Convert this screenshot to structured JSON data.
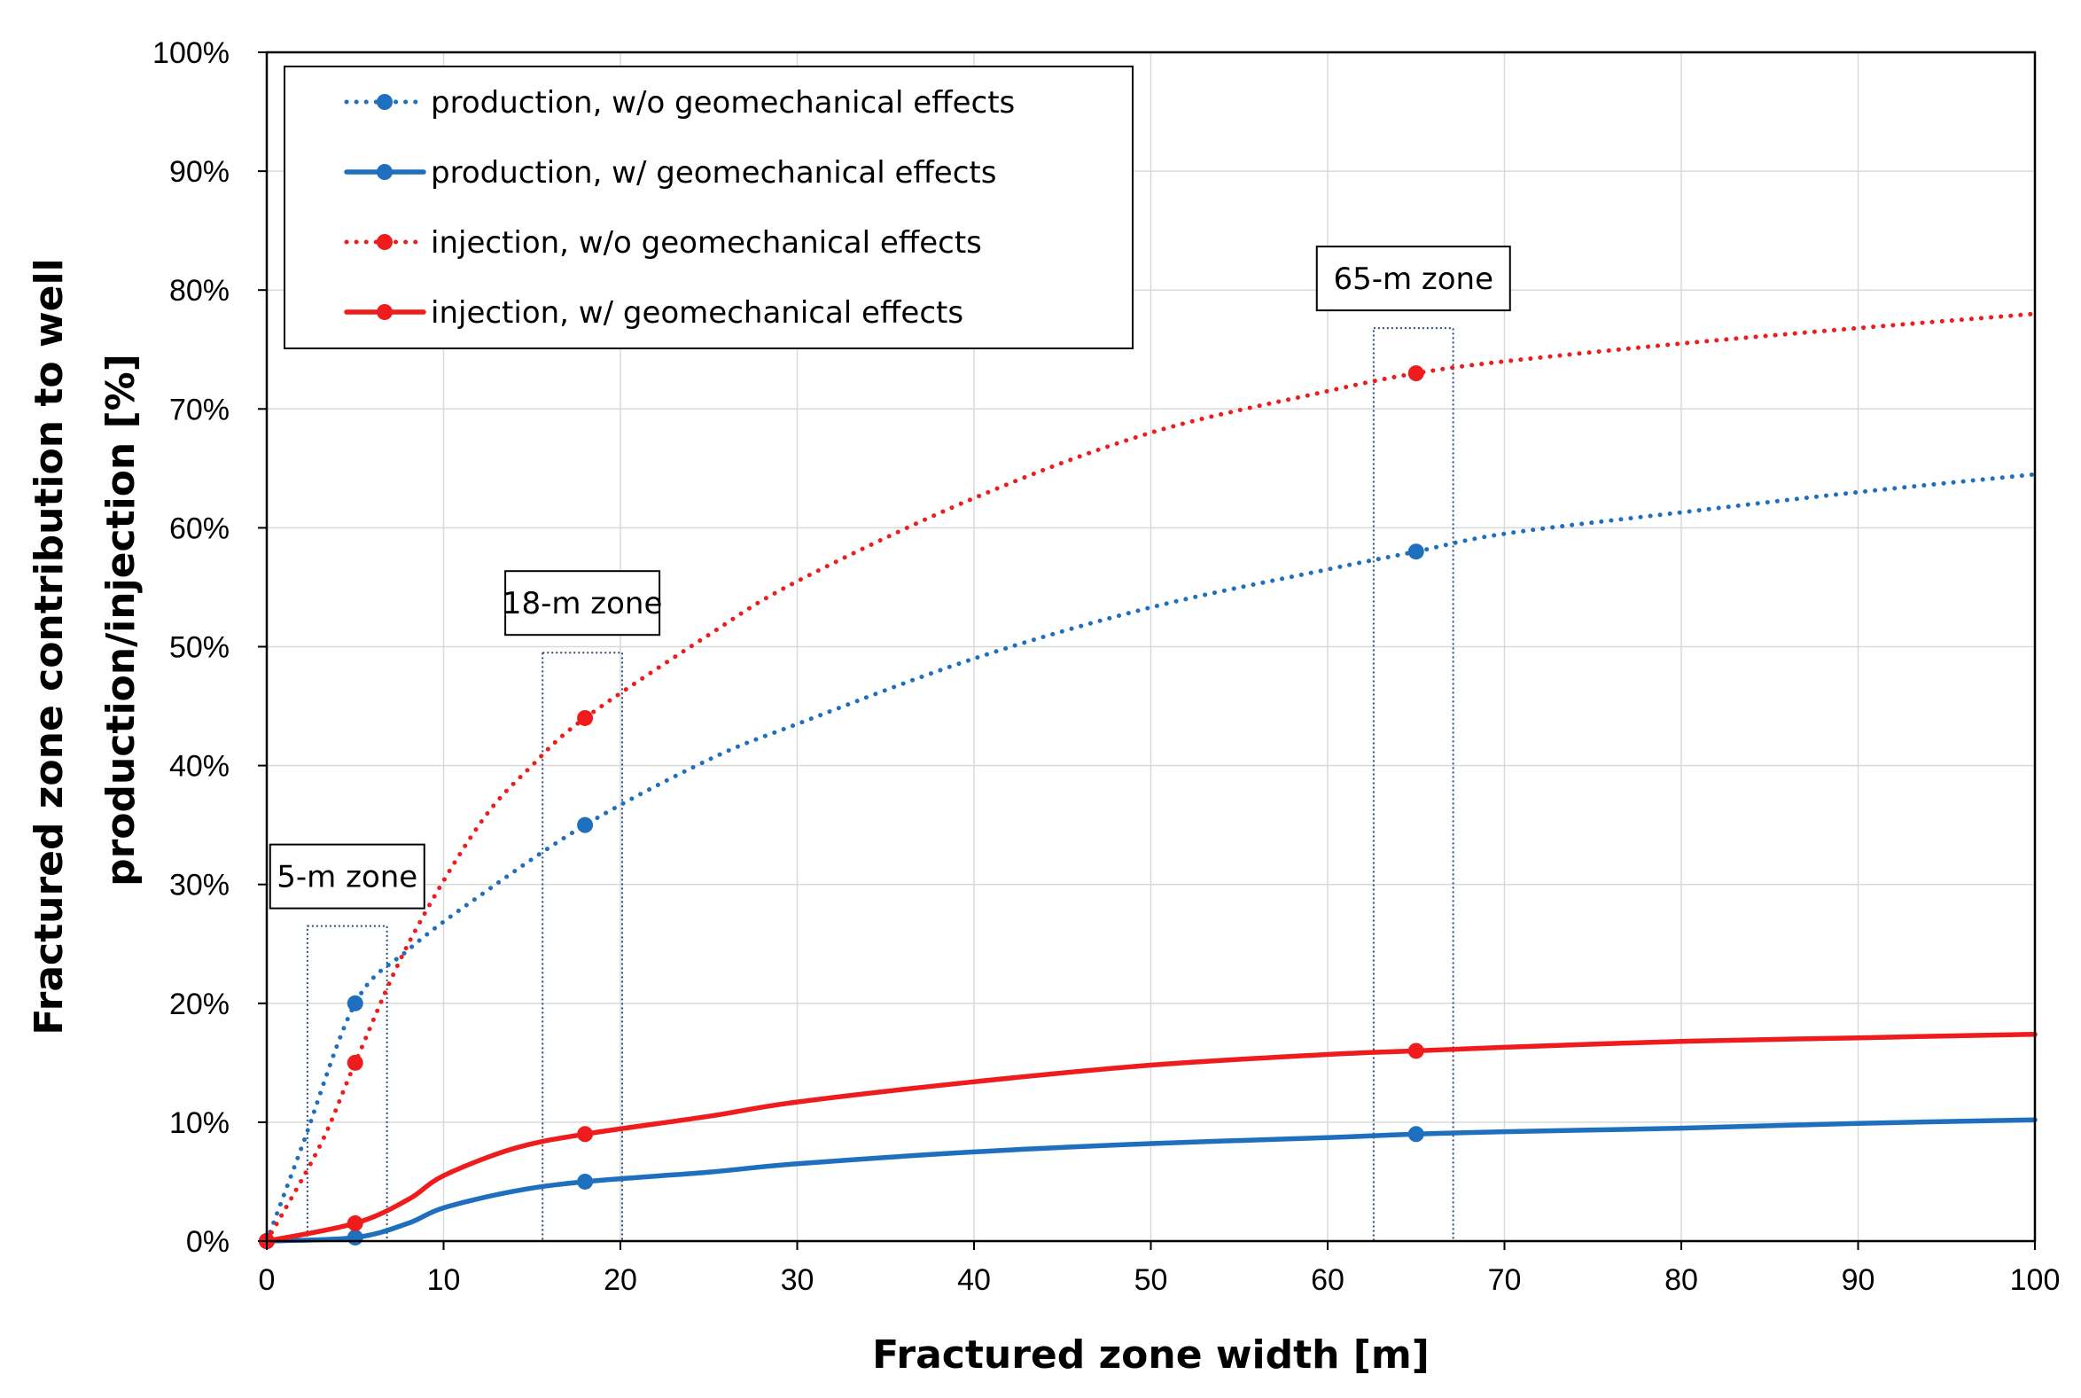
{
  "chart_data": {
    "type": "line",
    "xlabel": "Fractured zone width [m]",
    "ylabel_lines": [
      "Fractured zone contribution to well",
      "production/injection [%]"
    ],
    "xlim": [
      0,
      100
    ],
    "ylim": [
      0,
      100
    ],
    "x_ticks": [
      0,
      10,
      20,
      30,
      40,
      50,
      60,
      70,
      80,
      90,
      100
    ],
    "x_tick_labels": [
      "0",
      "10",
      "20",
      "30",
      "40",
      "50",
      "60",
      "70",
      "80",
      "90",
      "100"
    ],
    "y_ticks": [
      0,
      10,
      20,
      30,
      40,
      50,
      60,
      70,
      80,
      90,
      100
    ],
    "y_tick_labels": [
      "0%",
      "10%",
      "20%",
      "30%",
      "40%",
      "50%",
      "60%",
      "70%",
      "80%",
      "90%",
      "100%"
    ],
    "grid": true,
    "legend_position": "top-left",
    "series": [
      {
        "name": "production, w/o geomechanical effects",
        "color": "#1f6fbf",
        "style": "dotted",
        "curve": [
          [
            0,
            0
          ],
          [
            2,
            8
          ],
          [
            5,
            20
          ],
          [
            8,
            24.5
          ],
          [
            12,
            29
          ],
          [
            18,
            35
          ],
          [
            25,
            40.5
          ],
          [
            30,
            43.5
          ],
          [
            40,
            49
          ],
          [
            50,
            53.3
          ],
          [
            60,
            56.5
          ],
          [
            65,
            58
          ],
          [
            70,
            59.5
          ],
          [
            80,
            61.3
          ],
          [
            90,
            63
          ],
          [
            100,
            64.5
          ]
        ],
        "points": [
          [
            0,
            0
          ],
          [
            5,
            20
          ],
          [
            18,
            35
          ],
          [
            65,
            58
          ]
        ]
      },
      {
        "name": "production, w/ geomechanical effects",
        "color": "#1f6fbf",
        "style": "solid",
        "curve": [
          [
            0,
            0
          ],
          [
            5,
            0.3
          ],
          [
            8,
            1.5
          ],
          [
            10,
            2.8
          ],
          [
            14,
            4.2
          ],
          [
            18,
            5
          ],
          [
            25,
            5.8
          ],
          [
            30,
            6.5
          ],
          [
            40,
            7.5
          ],
          [
            50,
            8.2
          ],
          [
            60,
            8.7
          ],
          [
            65,
            9
          ],
          [
            70,
            9.2
          ],
          [
            80,
            9.5
          ],
          [
            90,
            9.9
          ],
          [
            100,
            10.2
          ]
        ],
        "points": [
          [
            0,
            0
          ],
          [
            5,
            0.3
          ],
          [
            18,
            5
          ],
          [
            65,
            9
          ]
        ]
      },
      {
        "name": "injection, w/o geomechanical effects",
        "color": "#ee1c1c",
        "style": "dotted",
        "curve": [
          [
            0,
            0
          ],
          [
            3,
            8
          ],
          [
            5,
            15
          ],
          [
            8,
            25
          ],
          [
            12,
            35
          ],
          [
            15,
            40
          ],
          [
            18,
            44
          ],
          [
            25,
            51
          ],
          [
            30,
            55.5
          ],
          [
            40,
            62.5
          ],
          [
            50,
            68
          ],
          [
            60,
            71.5
          ],
          [
            65,
            73
          ],
          [
            70,
            74
          ],
          [
            80,
            75.5
          ],
          [
            90,
            76.8
          ],
          [
            100,
            78
          ]
        ],
        "points": [
          [
            0,
            0
          ],
          [
            5,
            15
          ],
          [
            18,
            44
          ],
          [
            65,
            73
          ]
        ]
      },
      {
        "name": "injection, w/ geomechanical effects",
        "color": "#ee1c1c",
        "style": "solid",
        "curve": [
          [
            0,
            0
          ],
          [
            5,
            1.5
          ],
          [
            8,
            3.5
          ],
          [
            10,
            5.5
          ],
          [
            14,
            7.8
          ],
          [
            18,
            9
          ],
          [
            25,
            10.5
          ],
          [
            30,
            11.7
          ],
          [
            40,
            13.4
          ],
          [
            50,
            14.8
          ],
          [
            60,
            15.7
          ],
          [
            65,
            16
          ],
          [
            70,
            16.3
          ],
          [
            80,
            16.8
          ],
          [
            90,
            17.1
          ],
          [
            100,
            17.4
          ]
        ],
        "points": [
          [
            0,
            0
          ],
          [
            5,
            1.5
          ],
          [
            18,
            9
          ],
          [
            65,
            16
          ]
        ]
      }
    ],
    "zones": [
      {
        "label": "5-m zone",
        "x_range": [
          2.3,
          6.8
        ],
        "y_range": [
          0,
          26.5
        ]
      },
      {
        "label": "18-m zone",
        "x_range": [
          15.6,
          20.1
        ],
        "y_range": [
          0,
          49.5
        ]
      },
      {
        "label": "65-m zone",
        "x_range": [
          62.6,
          67.1
        ],
        "y_range": [
          0,
          76.8
        ]
      }
    ]
  }
}
